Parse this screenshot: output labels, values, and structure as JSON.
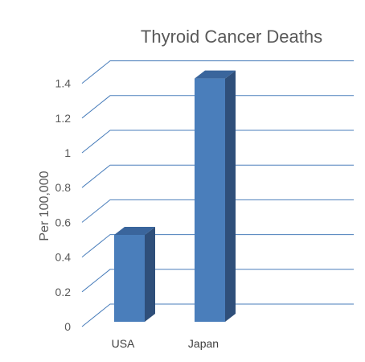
{
  "chart_data": {
    "type": "bar",
    "title": "Thyroid Cancer Deaths",
    "xlabel": "",
    "ylabel": "Per 100,000",
    "categories": [
      "USA",
      "Japan"
    ],
    "values": [
      0.5,
      1.4
    ],
    "ylim": [
      0,
      1.4
    ],
    "yticks": [
      "0",
      "0.2",
      "0.4",
      "0.6",
      "0.8",
      "1",
      "1.2",
      "1.4"
    ],
    "grid": true,
    "legend": "none",
    "style": "3d-column",
    "colors": {
      "bar_front": "#4a7ebb",
      "bar_side": "#2f4f7a",
      "bar_top": "#3a659c",
      "grid": "#4a7ebb",
      "text": "#595959"
    }
  }
}
